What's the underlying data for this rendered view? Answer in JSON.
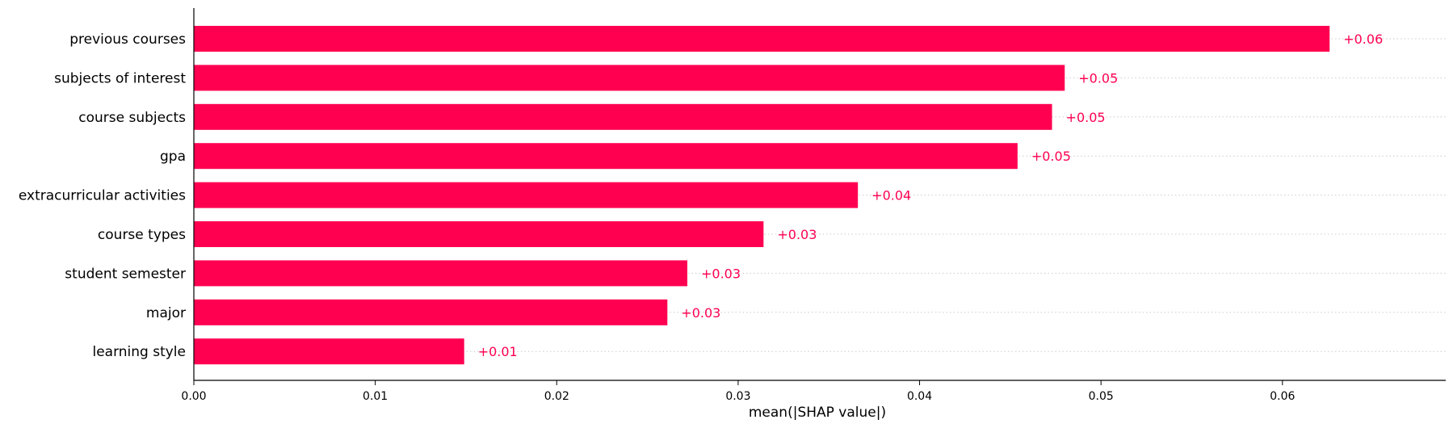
{
  "chart_data": {
    "type": "bar",
    "orientation": "horizontal",
    "categories": [
      "previous courses",
      "subjects of interest",
      "course subjects",
      "gpa",
      "extracurricular activities",
      "course types",
      "student semester",
      "major",
      "learning style"
    ],
    "values": [
      0.0626,
      0.048,
      0.0473,
      0.0454,
      0.0366,
      0.0314,
      0.0272,
      0.0261,
      0.0149
    ],
    "value_labels": [
      "+0.06",
      "+0.05",
      "+0.05",
      "+0.05",
      "+0.04",
      "+0.03",
      "+0.03",
      "+0.03",
      "+0.01"
    ],
    "xlabel": "mean(|SHAP value|)",
    "ylabel": "",
    "xlim": [
      0.0,
      0.069
    ],
    "xticks": [
      0.0,
      0.01,
      0.02,
      0.03,
      0.04,
      0.05,
      0.06
    ],
    "xtick_labels": [
      "0.00",
      "0.01",
      "0.02",
      "0.03",
      "0.04",
      "0.05",
      "0.06"
    ],
    "grid": "dotted horizontal guides per bar",
    "colors": {
      "bar": "#ff0051",
      "value_label": "#ff0051",
      "axis": "#000000",
      "grid": "#cccccc"
    }
  }
}
